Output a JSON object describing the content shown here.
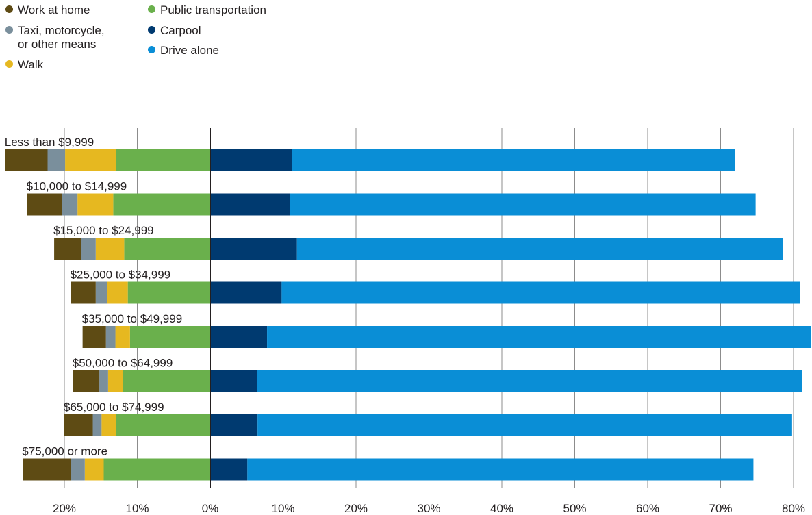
{
  "legend": {
    "items": [
      {
        "key": "work_at_home",
        "line1": "Work at home",
        "line2": "",
        "color": "#5e4b14"
      },
      {
        "key": "taxi",
        "line1": "Taxi, motorcycle,",
        "line2": "or other means",
        "color": "#7a8f9c"
      },
      {
        "key": "walk",
        "line1": "Walk",
        "line2": "",
        "color": "#e6b820"
      },
      {
        "key": "public_transportation",
        "line1": "Public transportation",
        "line2": "",
        "color": "#6ab04c"
      },
      {
        "key": "carpool",
        "line1": "Carpool",
        "line2": "",
        "color": "#003a70"
      },
      {
        "key": "drive_alone",
        "line1": "Drive alone",
        "line2": "",
        "color": "#0a8ed6"
      }
    ]
  },
  "chart_data": {
    "type": "bar",
    "orientation": "horizontal-diverging-stacked",
    "categories": [
      "Less than $9,999",
      "$10,000 to $14,999",
      "$15,000 to $24,999",
      "$25,000 to $34,999",
      "$35,000 to $49,999",
      "$50,000 to $64,999",
      "$65,000 to $74,999",
      "$75,000 or more"
    ],
    "left_series": [
      {
        "name": "Public transportation",
        "color": "#6ab04c",
        "values": [
          12.9,
          13.3,
          11.8,
          11.3,
          11.0,
          12.0,
          12.9,
          14.6
        ]
      },
      {
        "name": "Walk",
        "color": "#e6b820",
        "values": [
          7.0,
          4.9,
          3.9,
          2.8,
          2.0,
          2.0,
          2.0,
          2.6
        ]
      },
      {
        "name": "Taxi, motorcycle, or other means",
        "color": "#7a8f9c",
        "values": [
          2.4,
          2.1,
          2.0,
          1.6,
          1.3,
          1.2,
          1.2,
          1.9
        ]
      },
      {
        "name": "Work at home",
        "color": "#5e4b14",
        "values": [
          5.8,
          4.8,
          3.7,
          3.4,
          3.2,
          3.6,
          3.9,
          6.6
        ]
      }
    ],
    "right_series": [
      {
        "name": "Carpool",
        "color": "#003a70",
        "values": [
          11.2,
          10.9,
          11.9,
          9.8,
          7.8,
          6.4,
          6.5,
          5.1
        ]
      },
      {
        "name": "Drive alone",
        "color": "#0a8ed6",
        "values": [
          60.8,
          63.9,
          66.6,
          71.1,
          74.6,
          74.8,
          73.3,
          69.4
        ]
      }
    ],
    "x_ticks": [
      {
        "value": -20,
        "label": "20%"
      },
      {
        "value": -10,
        "label": "10%"
      },
      {
        "value": 0,
        "label": "0%"
      },
      {
        "value": 10,
        "label": "10%"
      },
      {
        "value": 20,
        "label": "20%"
      },
      {
        "value": 30,
        "label": "30%"
      },
      {
        "value": 40,
        "label": "40%"
      },
      {
        "value": 50,
        "label": "50%"
      },
      {
        "value": 60,
        "label": "60%"
      },
      {
        "value": 70,
        "label": "70%"
      },
      {
        "value": 80,
        "label": "80%"
      }
    ],
    "xlim": [
      -28.8,
      82.7
    ],
    "grid": true,
    "title": "",
    "xlabel": "",
    "ylabel": "",
    "legend_position": "top-left"
  }
}
